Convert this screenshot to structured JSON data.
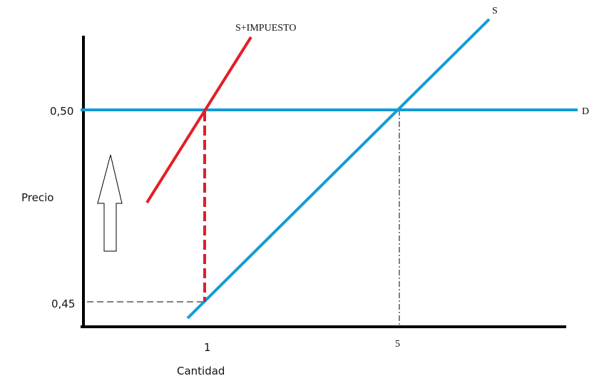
{
  "axes": {
    "y_label": "Precio",
    "x_label": "Cantidad"
  },
  "y_ticks": [
    "0,50",
    "0,45"
  ],
  "x_ticks": [
    "1",
    "5"
  ],
  "curves": {
    "tax_supply": "S+IMPUESTO",
    "supply": "S",
    "demand": "D"
  }
}
